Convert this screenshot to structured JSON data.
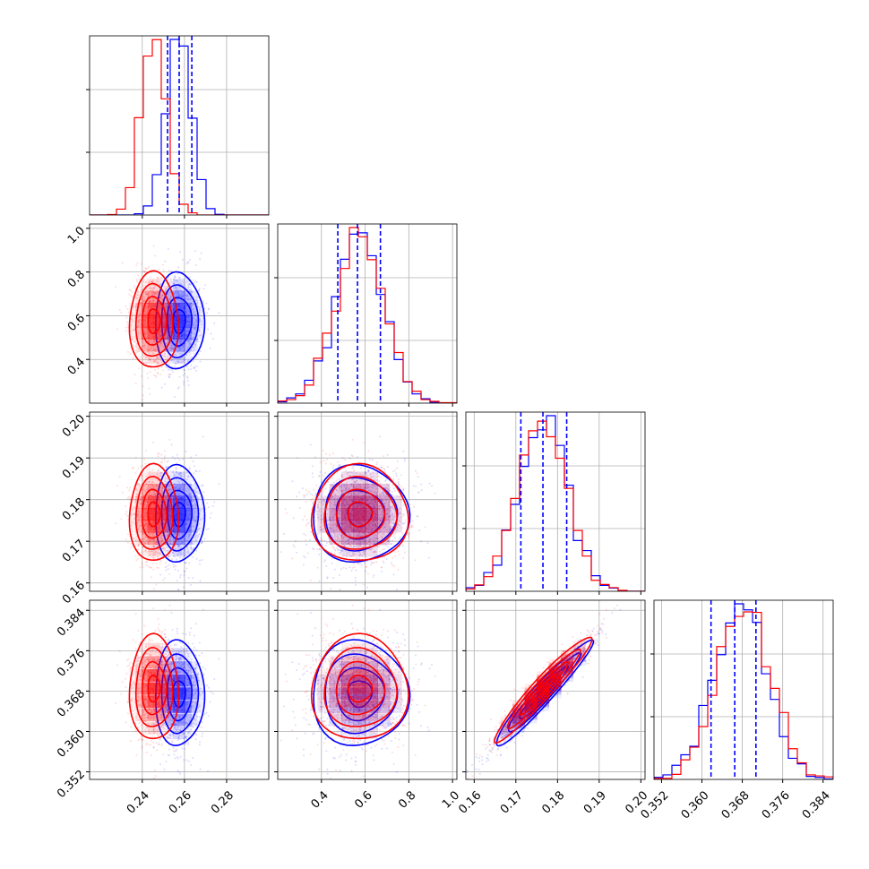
{
  "chart_data": {
    "type": "corner",
    "colors": {
      "series_a": "#0000ff",
      "series_b": "#ff0000",
      "grid": "#b0b0b0",
      "axis": "#000000"
    },
    "series": [
      {
        "color": "#0000ff",
        "means": [
          0.2575,
          0.575,
          0.1765,
          0.3675
        ],
        "sigmas": [
          0.0058,
          0.11,
          0.0058,
          0.0052
        ],
        "corr": [
          [
            1,
            0,
            0,
            0
          ],
          [
            0,
            1,
            0,
            0
          ],
          [
            0,
            0,
            1,
            0.96
          ],
          [
            0,
            0,
            0.96,
            1
          ]
        ]
      },
      {
        "color": "#ff0000",
        "means": [
          0.2455,
          0.575,
          0.1765,
          0.3685
        ],
        "sigmas": [
          0.0058,
          0.11,
          0.0058,
          0.0052
        ],
        "corr": [
          [
            1,
            0,
            0,
            0
          ],
          [
            0,
            1,
            0,
            0
          ],
          [
            0,
            0,
            1,
            0.96
          ],
          [
            0,
            0,
            0.96,
            1
          ]
        ]
      }
    ],
    "params": [
      {
        "range": [
          0.215,
          0.3
        ],
        "ticks": [
          0.24,
          0.26,
          0.28
        ],
        "tick_labels": [
          "0.24",
          "0.26",
          "0.28"
        ],
        "quantiles": [
          0.252,
          0.2575,
          0.2635
        ]
      },
      {
        "range": [
          0.2,
          1.02
        ],
        "ticks": [
          0.4,
          0.6,
          0.8,
          1.0
        ],
        "tick_labels": [
          "0.4",
          "0.6",
          "0.8",
          "1.0"
        ],
        "quantiles": [
          0.475,
          0.565,
          0.67
        ]
      },
      {
        "range": [
          0.158,
          0.201
        ],
        "ticks": [
          0.16,
          0.17,
          0.18,
          0.19,
          0.2
        ],
        "tick_labels": [
          "0.16",
          "0.17",
          "0.18",
          "0.19",
          "0.20"
        ],
        "quantiles": [
          0.1712,
          0.1765,
          0.1822
        ]
      },
      {
        "range": [
          0.3505,
          0.386
        ],
        "ticks": [
          0.352,
          0.36,
          0.368,
          0.376,
          0.384
        ],
        "tick_labels": [
          "0.352",
          "0.360",
          "0.368",
          "0.376",
          "0.384"
        ],
        "quantiles": [
          0.3618,
          0.3665,
          0.3707
        ]
      }
    ],
    "quantile_line_color": "#0000ff",
    "grid": true,
    "legend": "none"
  }
}
